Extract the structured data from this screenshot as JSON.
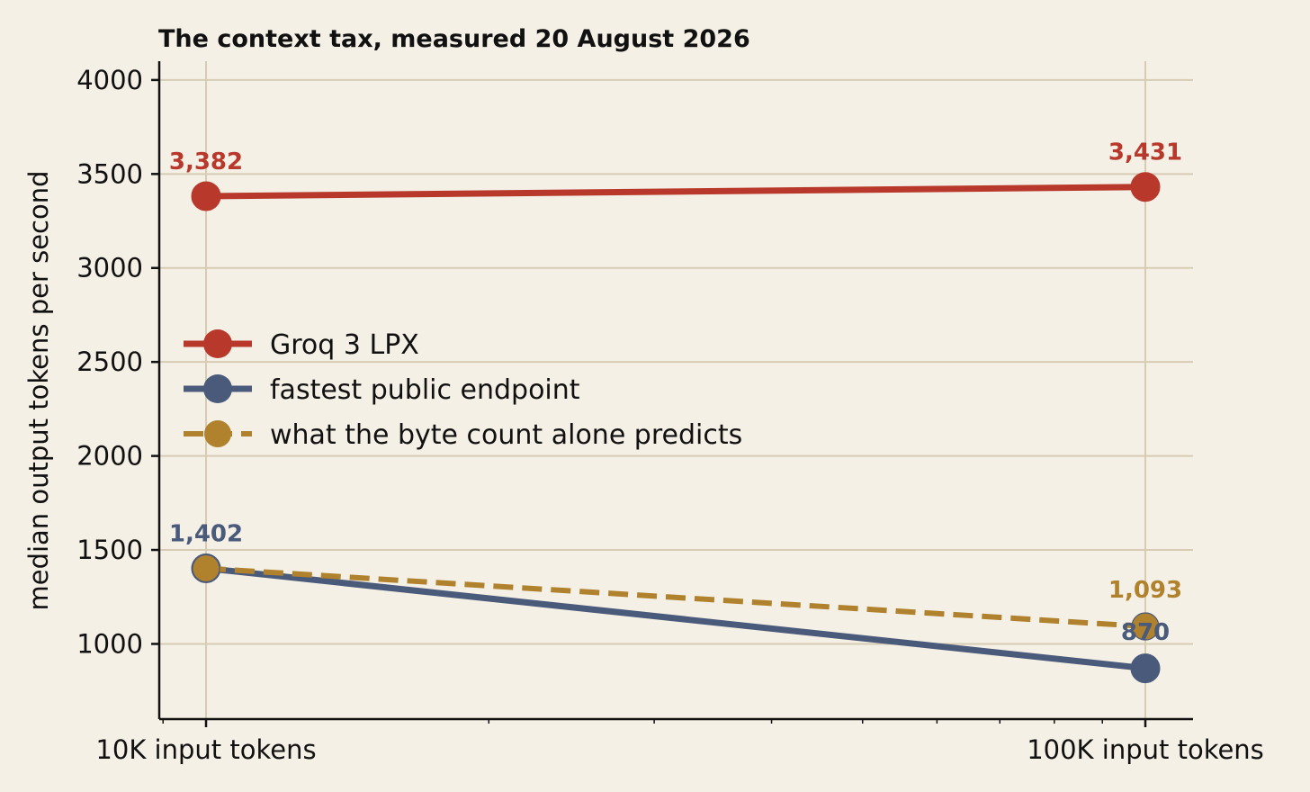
{
  "chart_data": {
    "type": "line",
    "title": "The context tax, measured 20 August 2026",
    "ylabel": "median output tokens per second",
    "xlabel": "",
    "x_scale": "log",
    "x": [
      10000,
      100000
    ],
    "x_tick_labels": [
      "10K input tokens",
      "100K input tokens"
    ],
    "ylim": [
      600,
      4100
    ],
    "yticks": [
      1000,
      1500,
      2000,
      2500,
      3000,
      3500,
      4000
    ],
    "grid": true,
    "legend_position": "center-left",
    "series": [
      {
        "name": "Groq 3 LPX",
        "values": [
          3382,
          3431
        ],
        "labels": [
          "3,382",
          "3,431"
        ],
        "color": "#b8392b",
        "style": "solid"
      },
      {
        "name": "fastest public endpoint",
        "values": [
          1402,
          870
        ],
        "labels": [
          "1,402",
          "870"
        ],
        "color": "#4a5a7a",
        "style": "solid"
      },
      {
        "name": "what the byte count alone predicts",
        "values": [
          1402,
          1093
        ],
        "labels": [
          "",
          "1,093"
        ],
        "color": "#b0822e",
        "style": "dashed"
      }
    ]
  }
}
